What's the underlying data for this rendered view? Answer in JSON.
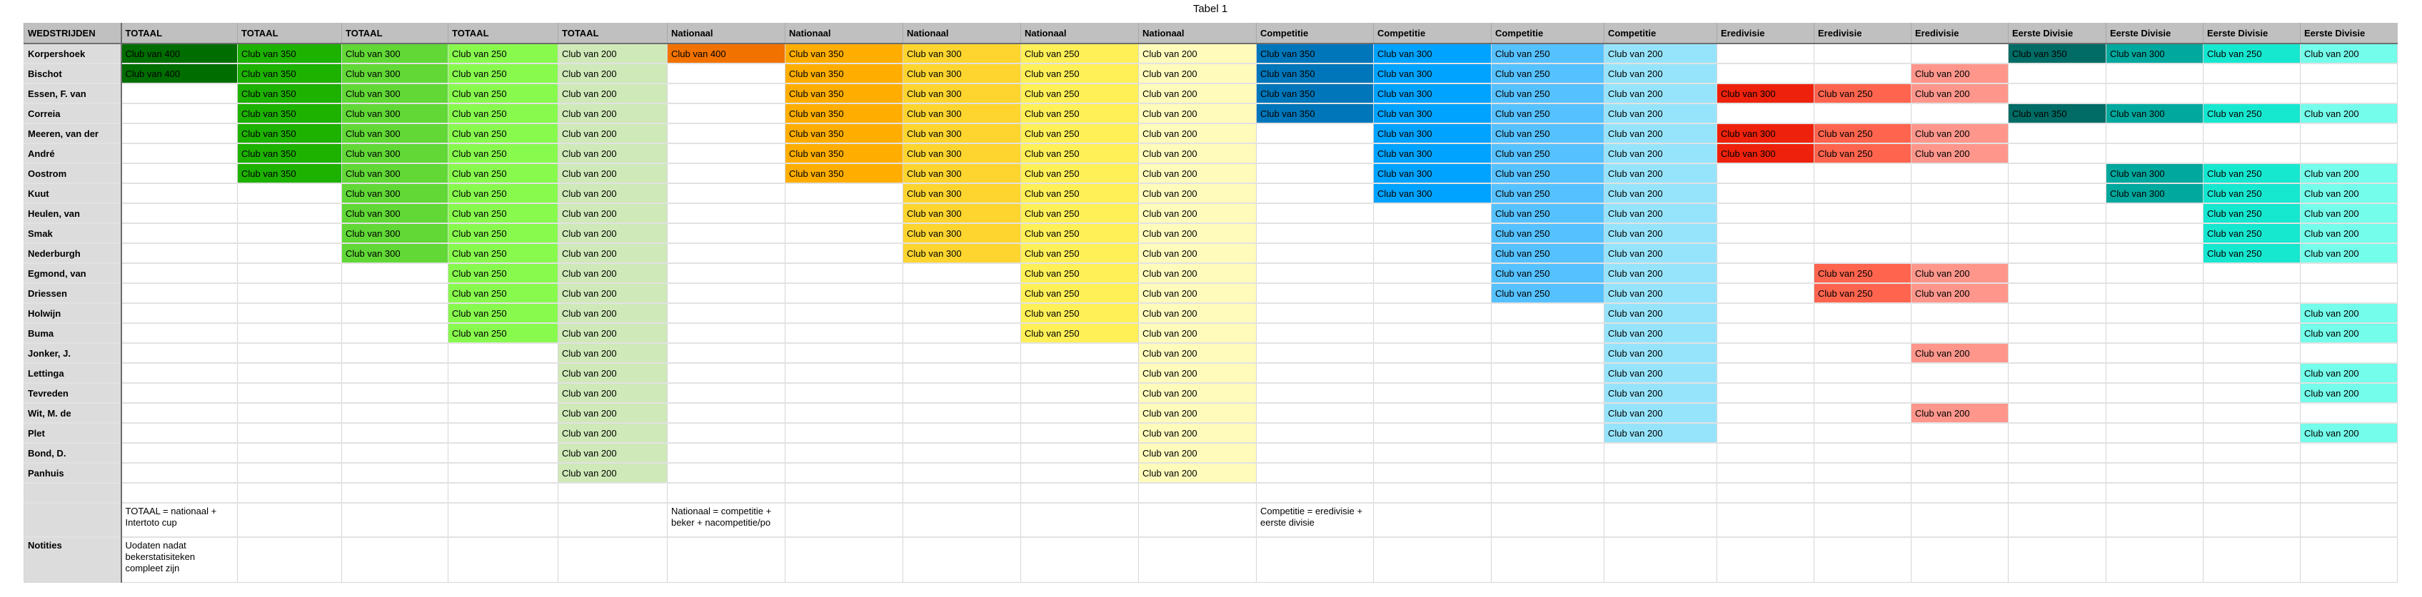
{
  "title": "Tabel 1",
  "header_corner": "WEDSTRIJDEN",
  "columns": [
    {
      "label": "TOTAAL",
      "color": "#006d00"
    },
    {
      "label": "TOTAAL",
      "color": "#1db100"
    },
    {
      "label": "TOTAAL",
      "color": "#61d836"
    },
    {
      "label": "TOTAAL",
      "color": "#88fa4e"
    },
    {
      "label": "TOTAAL",
      "color": "#cfe9b8"
    },
    {
      "label": "Nationaal",
      "color": "#f27200"
    },
    {
      "label": "Nationaal",
      "color": "#ffae00"
    },
    {
      "label": "Nationaal",
      "color": "#fed52f"
    },
    {
      "label": "Nationaal",
      "color": "#fff057"
    },
    {
      "label": "Nationaal",
      "color": "#fffbbb"
    },
    {
      "label": "Competitie",
      "color": "#0076ba"
    },
    {
      "label": "Competitie",
      "color": "#00a3ff"
    },
    {
      "label": "Competitie",
      "color": "#56c1ff"
    },
    {
      "label": "Competitie",
      "color": "#96e4fb"
    },
    {
      "label": "Eredivisie",
      "color": "#ee220c"
    },
    {
      "label": "Eredivisie",
      "color": "#ff644e"
    },
    {
      "label": "Eredivisie",
      "color": "#ff968c"
    },
    {
      "label": "Eerste Divisie",
      "color": "#006c65"
    },
    {
      "label": "Eerste Divisie",
      "color": "#00a89d"
    },
    {
      "label": "Eerste Divisie",
      "color": "#16e7cf"
    },
    {
      "label": "Eerste Divisie",
      "color": "#73fdea"
    }
  ],
  "rows": [
    {
      "name": "Korpershoek",
      "cells": [
        "Club van 400",
        "Club van 350",
        "Club van 300",
        "Club van 250",
        "Club van 200",
        "Club van 400",
        "Club van 350",
        "Club van 300",
        "Club van 250",
        "Club van 200",
        "Club van 350",
        "Club van 300",
        "Club van 250",
        "Club van 200",
        "",
        "",
        "",
        "Club van 350",
        "Club van 300",
        "Club van 250",
        "Club van 200"
      ]
    },
    {
      "name": "Bischot",
      "cells": [
        "Club van 400",
        "Club van 350",
        "Club van 300",
        "Club van 250",
        "Club van 200",
        "",
        "Club van 350",
        "Club van 300",
        "Club van 250",
        "Club van 200",
        "Club van 350",
        "Club van 300",
        "Club van 250",
        "Club van 200",
        "",
        "",
        "Club van 200",
        "",
        "",
        "",
        ""
      ]
    },
    {
      "name": "Essen, F. van",
      "cells": [
        "",
        "Club van 350",
        "Club van 300",
        "Club van 250",
        "Club van 200",
        "",
        "Club van 350",
        "Club van 300",
        "Club van 250",
        "Club van 200",
        "Club van 350",
        "Club van 300",
        "Club van 250",
        "Club van 200",
        "Club van 300",
        "Club van 250",
        "Club van 200",
        "",
        "",
        "",
        ""
      ]
    },
    {
      "name": "Correia",
      "cells": [
        "",
        "Club van 350",
        "Club van 300",
        "Club van 250",
        "Club van 200",
        "",
        "Club van 350",
        "Club van 300",
        "Club van 250",
        "Club van 200",
        "Club van 350",
        "Club van 300",
        "Club van 250",
        "Club van 200",
        "",
        "",
        "",
        "Club van 350",
        "Club van 300",
        "Club van 250",
        "Club van 200"
      ]
    },
    {
      "name": "Meeren, van der",
      "cells": [
        "",
        "Club van 350",
        "Club van 300",
        "Club van 250",
        "Club van 200",
        "",
        "Club van 350",
        "Club van 300",
        "Club van 250",
        "Club van 200",
        "",
        "Club van 300",
        "Club van 250",
        "Club van 200",
        "Club van 300",
        "Club van 250",
        "Club van 200",
        "",
        "",
        "",
        ""
      ]
    },
    {
      "name": "André",
      "cells": [
        "",
        "Club van 350",
        "Club van 300",
        "Club van 250",
        "Club van 200",
        "",
        "Club van 350",
        "Club van 300",
        "Club van 250",
        "Club van 200",
        "",
        "Club van 300",
        "Club van 250",
        "Club van 200",
        "Club van 300",
        "Club van 250",
        "Club van 200",
        "",
        "",
        "",
        ""
      ]
    },
    {
      "name": "Oostrom",
      "cells": [
        "",
        "Club van 350",
        "Club van 300",
        "Club van 250",
        "Club van 200",
        "",
        "Club van 350",
        "Club van 300",
        "Club van 250",
        "Club van 200",
        "",
        "Club van 300",
        "Club van 250",
        "Club van 200",
        "",
        "",
        "",
        "",
        "Club van 300",
        "Club van 250",
        "Club van 200"
      ]
    },
    {
      "name": "Kuut",
      "cells": [
        "",
        "",
        "Club van 300",
        "Club van 250",
        "Club van 200",
        "",
        "",
        "Club van 300",
        "Club van 250",
        "Club van 200",
        "",
        "Club van 300",
        "Club van 250",
        "Club van 200",
        "",
        "",
        "",
        "",
        "Club van 300",
        "Club van 250",
        "Club van 200"
      ]
    },
    {
      "name": "Heulen, van",
      "cells": [
        "",
        "",
        "Club van 300",
        "Club van 250",
        "Club van 200",
        "",
        "",
        "Club van 300",
        "Club van 250",
        "Club van 200",
        "",
        "",
        "Club van 250",
        "Club van 200",
        "",
        "",
        "",
        "",
        "",
        "Club van 250",
        "Club van 200"
      ]
    },
    {
      "name": "Smak",
      "cells": [
        "",
        "",
        "Club van 300",
        "Club van 250",
        "Club van 200",
        "",
        "",
        "Club van 300",
        "Club van 250",
        "Club van 200",
        "",
        "",
        "Club van 250",
        "Club van 200",
        "",
        "",
        "",
        "",
        "",
        "Club van 250",
        "Club van 200"
      ]
    },
    {
      "name": "Nederburgh",
      "cells": [
        "",
        "",
        "Club van 300",
        "Club van 250",
        "Club van 200",
        "",
        "",
        "Club van 300",
        "Club van 250",
        "Club van 200",
        "",
        "",
        "Club van 250",
        "Club van 200",
        "",
        "",
        "",
        "",
        "",
        "Club van 250",
        "Club van 200"
      ]
    },
    {
      "name": "Egmond, van",
      "cells": [
        "",
        "",
        "",
        "Club van 250",
        "Club van 200",
        "",
        "",
        "",
        "Club van 250",
        "Club van 200",
        "",
        "",
        "Club van 250",
        "Club van 200",
        "",
        "Club van 250",
        "Club van 200",
        "",
        "",
        "",
        ""
      ]
    },
    {
      "name": "Driessen",
      "cells": [
        "",
        "",
        "",
        "Club van 250",
        "Club van 200",
        "",
        "",
        "",
        "Club van 250",
        "Club van 200",
        "",
        "",
        "Club van 250",
        "Club van 200",
        "",
        "Club van 250",
        "Club van 200",
        "",
        "",
        "",
        ""
      ]
    },
    {
      "name": "Holwijn",
      "cells": [
        "",
        "",
        "",
        "Club van 250",
        "Club van 200",
        "",
        "",
        "",
        "Club van 250",
        "Club van 200",
        "",
        "",
        "",
        "Club van 200",
        "",
        "",
        "",
        "",
        "",
        "",
        "Club van 200"
      ]
    },
    {
      "name": "Buma",
      "cells": [
        "",
        "",
        "",
        "Club van 250",
        "Club van 200",
        "",
        "",
        "",
        "Club van 250",
        "Club van 200",
        "",
        "",
        "",
        "Club van 200",
        "",
        "",
        "",
        "",
        "",
        "",
        "Club van 200"
      ]
    },
    {
      "name": "Jonker, J.",
      "cells": [
        "",
        "",
        "",
        "",
        "Club van 200",
        "",
        "",
        "",
        "",
        "Club van 200",
        "",
        "",
        "",
        "Club van 200",
        "",
        "",
        "Club van 200",
        "",
        "",
        "",
        ""
      ]
    },
    {
      "name": "Lettinga",
      "cells": [
        "",
        "",
        "",
        "",
        "Club van 200",
        "",
        "",
        "",
        "",
        "Club van 200",
        "",
        "",
        "",
        "Club van 200",
        "",
        "",
        "",
        "",
        "",
        "",
        "Club van 200"
      ]
    },
    {
      "name": "Tevreden",
      "cells": [
        "",
        "",
        "",
        "",
        "Club van 200",
        "",
        "",
        "",
        "",
        "Club van 200",
        "",
        "",
        "",
        "Club van 200",
        "",
        "",
        "",
        "",
        "",
        "",
        "Club van 200"
      ]
    },
    {
      "name": "Wit, M. de",
      "cells": [
        "",
        "",
        "",
        "",
        "Club van 200",
        "",
        "",
        "",
        "",
        "Club van 200",
        "",
        "",
        "",
        "Club van 200",
        "",
        "",
        "Club van 200",
        "",
        "",
        "",
        ""
      ]
    },
    {
      "name": "Plet",
      "cells": [
        "",
        "",
        "",
        "",
        "Club van 200",
        "",
        "",
        "",
        "",
        "Club van 200",
        "",
        "",
        "",
        "Club van 200",
        "",
        "",
        "",
        "",
        "",
        "",
        "Club van 200"
      ]
    },
    {
      "name": "Bond, D.",
      "cells": [
        "",
        "",
        "",
        "",
        "Club van 200",
        "",
        "",
        "",
        "",
        "Club van 200",
        "",
        "",
        "",
        "",
        "",
        "",
        "",
        "",
        "",
        "",
        ""
      ]
    },
    {
      "name": "Panhuis",
      "cells": [
        "",
        "",
        "",
        "",
        "Club van 200",
        "",
        "",
        "",
        "",
        "Club van 200",
        "",
        "",
        "",
        "",
        "",
        "",
        "",
        "",
        "",
        "",
        ""
      ]
    }
  ],
  "notes": {
    "totaal": "TOTAAL = nationaal + Intertoto cup",
    "nationaal": "Nationaal = competitie + beker + nacompetitie/po",
    "competitie": "Competitie = eredivisie + eerste divisie"
  },
  "notities": {
    "label": "Notities",
    "text": "Uodaten nadat bekerstatisiteken compleet zijn"
  }
}
